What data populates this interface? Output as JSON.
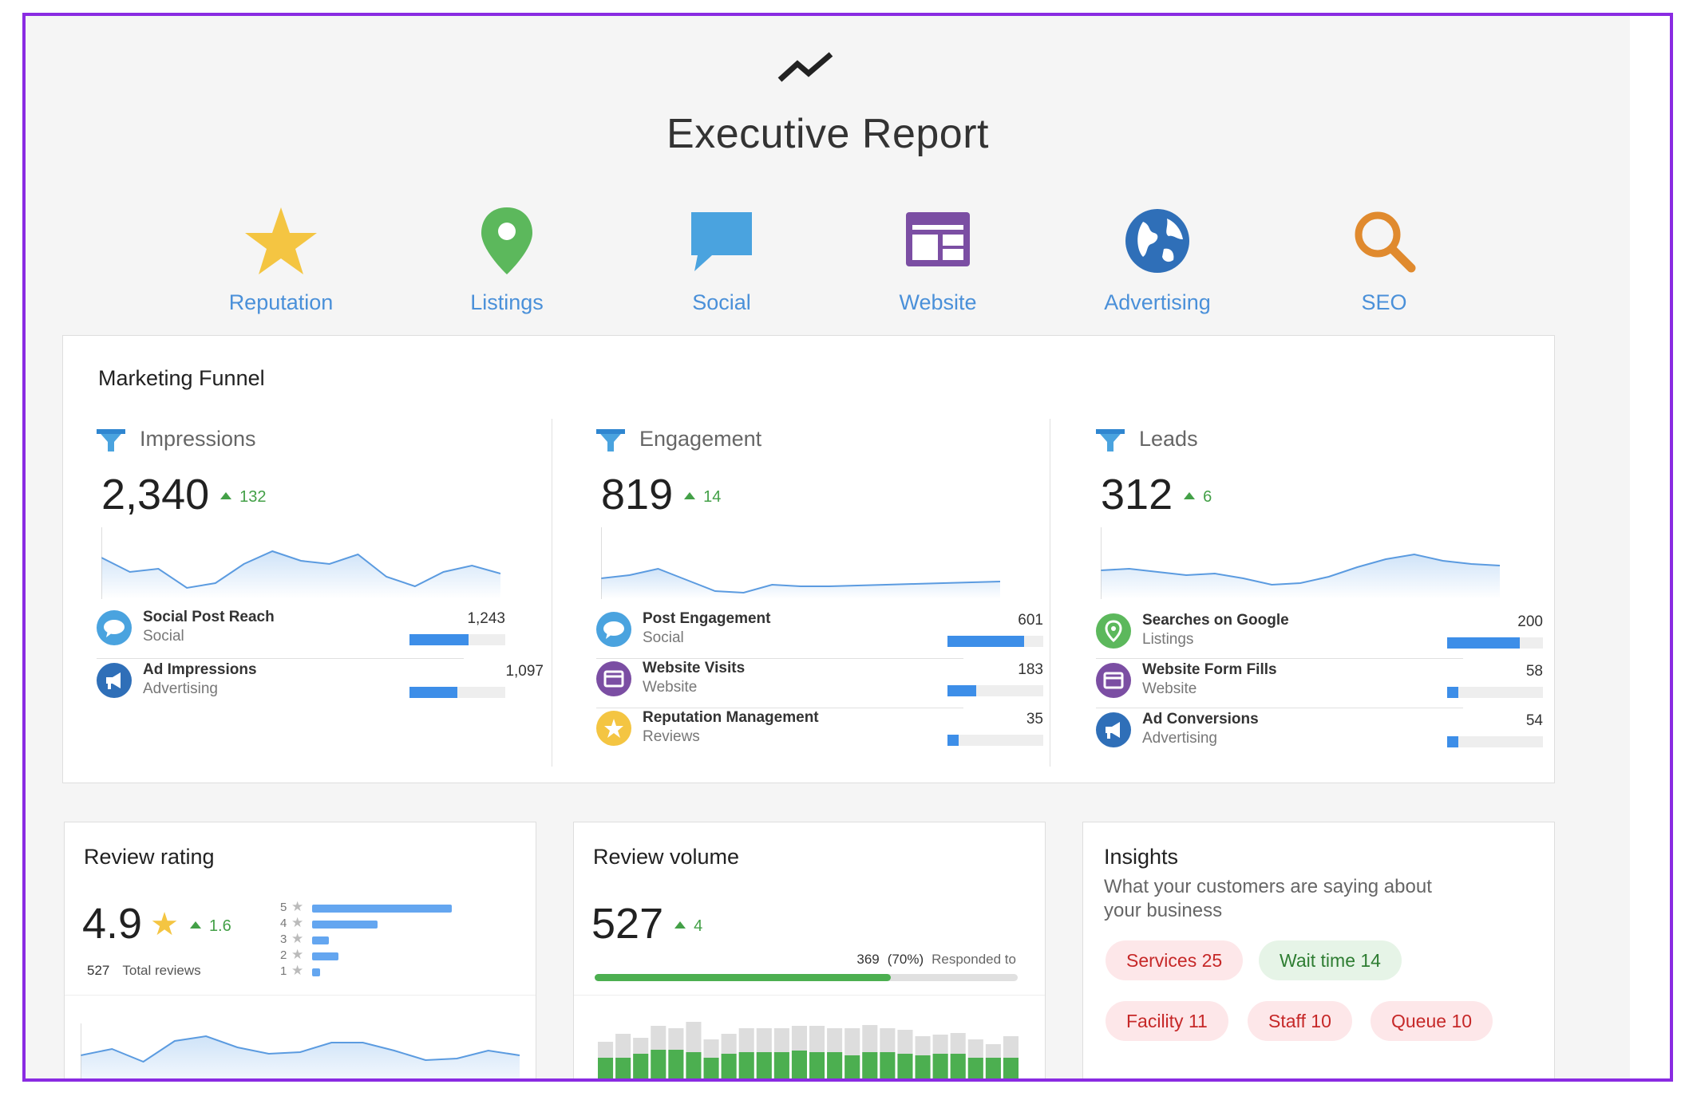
{
  "report": {
    "title": "Executive Report",
    "logo_icon": "trend-line-icon"
  },
  "nav": [
    {
      "label": "Reputation",
      "icon": "star-icon",
      "color": "#f4c542"
    },
    {
      "label": "Listings",
      "icon": "map-pin-icon",
      "color": "#5cb85c"
    },
    {
      "label": "Social",
      "icon": "chat-bubble-icon",
      "color": "#4aa3df"
    },
    {
      "label": "Website",
      "icon": "website-icon",
      "color": "#7b4ea3"
    },
    {
      "label": "Advertising",
      "icon": "globe-icon",
      "color": "#2f6fb8"
    },
    {
      "label": "SEO",
      "icon": "magnifier-icon",
      "color": "#e08a2e"
    }
  ],
  "funnel": {
    "title": "Marketing Funnel",
    "columns": [
      {
        "label": "Impressions",
        "value": "2,340",
        "delta": "132",
        "spark": [
          38,
          56,
          52,
          76,
          70,
          46,
          30,
          42,
          46,
          34,
          62,
          74,
          56,
          48,
          58
        ],
        "metrics": [
          {
            "name": "Social Post Reach",
            "source": "Social",
            "value": "1,243",
            "fraction": 0.62,
            "icon": "social-icon"
          },
          {
            "name": "Ad Impressions",
            "source": "Advertising",
            "value": "1,097",
            "fraction": 0.5,
            "icon": "megaphone-icon"
          }
        ]
      },
      {
        "label": "Engagement",
        "value": "819",
        "delta": "14",
        "spark": [
          64,
          60,
          52,
          66,
          80,
          82,
          72,
          74,
          74,
          73,
          72,
          71,
          70,
          69,
          68
        ],
        "metrics": [
          {
            "name": "Post Engagement",
            "source": "Social",
            "value": "601",
            "fraction": 0.8,
            "icon": "social-icon"
          },
          {
            "name": "Website Visits",
            "source": "Website",
            "value": "183",
            "fraction": 0.3,
            "icon": "website-icon"
          },
          {
            "name": "Reputation Management",
            "source": "Reviews",
            "value": "35",
            "fraction": 0.12,
            "icon": "star-icon"
          }
        ]
      },
      {
        "label": "Leads",
        "value": "312",
        "delta": "6",
        "spark": [
          54,
          52,
          56,
          60,
          58,
          64,
          72,
          70,
          62,
          50,
          40,
          34,
          42,
          46,
          48
        ],
        "metrics": [
          {
            "name": "Searches on Google",
            "source": "Listings",
            "value": "200",
            "fraction": 0.76,
            "icon": "pin-icon"
          },
          {
            "name": "Website Form Fills",
            "source": "Website",
            "value": "58",
            "fraction": 0.12,
            "icon": "website-icon"
          },
          {
            "name": "Ad Conversions",
            "source": "Advertising",
            "value": "54",
            "fraction": 0.12,
            "icon": "megaphone-icon"
          }
        ]
      }
    ]
  },
  "review_rating": {
    "title": "Review rating",
    "value": "4.9",
    "delta": "1.6",
    "total": "527",
    "total_label": "Total reviews",
    "distribution": [
      {
        "stars": "5",
        "fraction": 1.0
      },
      {
        "stars": "4",
        "fraction": 0.47
      },
      {
        "stars": "3",
        "fraction": 0.12
      },
      {
        "stars": "2",
        "fraction": 0.19
      },
      {
        "stars": "1",
        "fraction": 0.05
      }
    ],
    "spark": [
      40,
      32,
      48,
      22,
      16,
      30,
      38,
      36,
      24,
      24,
      34,
      46,
      44,
      34,
      40
    ]
  },
  "review_volume": {
    "title": "Review volume",
    "value": "527",
    "delta": "4",
    "responded": "369",
    "responded_pct": "(70%)",
    "responded_label": "Responded to",
    "responded_fraction": 0.7,
    "bars": [
      {
        "total": 0.75,
        "responded": 0.55
      },
      {
        "total": 0.85,
        "responded": 0.55
      },
      {
        "total": 0.8,
        "responded": 0.6
      },
      {
        "total": 0.95,
        "responded": 0.65
      },
      {
        "total": 0.92,
        "responded": 0.65
      },
      {
        "total": 1.0,
        "responded": 0.62
      },
      {
        "total": 0.78,
        "responded": 0.55
      },
      {
        "total": 0.85,
        "responded": 0.6
      },
      {
        "total": 0.92,
        "responded": 0.62
      },
      {
        "total": 0.92,
        "responded": 0.62
      },
      {
        "total": 0.92,
        "responded": 0.62
      },
      {
        "total": 0.95,
        "responded": 0.64
      },
      {
        "total": 0.95,
        "responded": 0.62
      },
      {
        "total": 0.92,
        "responded": 0.62
      },
      {
        "total": 0.92,
        "responded": 0.58
      },
      {
        "total": 0.96,
        "responded": 0.62
      },
      {
        "total": 0.92,
        "responded": 0.62
      },
      {
        "total": 0.9,
        "responded": 0.6
      },
      {
        "total": 0.82,
        "responded": 0.58
      },
      {
        "total": 0.84,
        "responded": 0.6
      },
      {
        "total": 0.86,
        "responded": 0.6
      },
      {
        "total": 0.78,
        "responded": 0.55
      },
      {
        "total": 0.72,
        "responded": 0.55
      },
      {
        "total": 0.82,
        "responded": 0.55
      }
    ]
  },
  "insights": {
    "title": "Insights",
    "subtitle": "What your customers are saying about your business",
    "chips": [
      {
        "label": "Services 25",
        "sentiment": "negative"
      },
      {
        "label": "Wait time 14",
        "sentiment": "positive"
      },
      {
        "label": "Facility 11",
        "sentiment": "negative"
      },
      {
        "label": "Staff 10",
        "sentiment": "negative"
      },
      {
        "label": "Queue 10",
        "sentiment": "negative"
      }
    ]
  }
}
